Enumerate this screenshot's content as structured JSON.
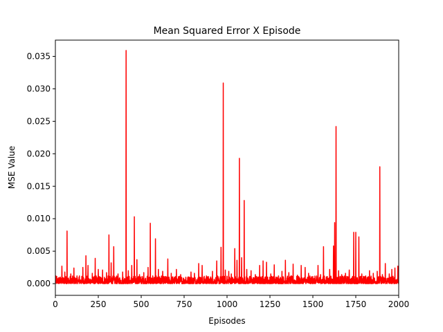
{
  "chart_data": {
    "type": "line",
    "title": "Mean Squared Error X Episode",
    "xlabel": "Episodes",
    "ylabel": "MSE Value",
    "xlim": [
      0,
      2000
    ],
    "ylim": [
      -0.0018,
      0.0375
    ],
    "xticks": [
      0,
      250,
      500,
      750,
      1000,
      1250,
      1500,
      1750,
      2000
    ],
    "xtick_labels": [
      "0",
      "250",
      "500",
      "750",
      "1000",
      "1250",
      "1500",
      "1750",
      "2000"
    ],
    "yticks": [
      0.0,
      0.005,
      0.01,
      0.015,
      0.02,
      0.025,
      0.03,
      0.035
    ],
    "ytick_labels": [
      "0.000",
      "0.005",
      "0.010",
      "0.015",
      "0.020",
      "0.025",
      "0.030",
      "0.035"
    ],
    "grid": false,
    "series": [
      {
        "color": "#ff0000",
        "baseline_max": 0.0012,
        "spikes": [
          [
            8,
            0.0011
          ],
          [
            25,
            0.0009
          ],
          [
            38,
            0.0027
          ],
          [
            55,
            0.0018
          ],
          [
            68,
            0.0081
          ],
          [
            90,
            0.0015
          ],
          [
            108,
            0.0024
          ],
          [
            140,
            0.0012
          ],
          [
            160,
            0.0025
          ],
          [
            178,
            0.0043
          ],
          [
            190,
            0.0028
          ],
          [
            215,
            0.0016
          ],
          [
            232,
            0.0039
          ],
          [
            250,
            0.0022
          ],
          [
            275,
            0.0021
          ],
          [
            298,
            0.0017
          ],
          [
            312,
            0.0075
          ],
          [
            325,
            0.0032
          ],
          [
            340,
            0.0057
          ],
          [
            365,
            0.0015
          ],
          [
            392,
            0.0018
          ],
          [
            412,
            0.0359
          ],
          [
            425,
            0.002
          ],
          [
            445,
            0.0028
          ],
          [
            460,
            0.0103
          ],
          [
            475,
            0.0037
          ],
          [
            490,
            0.0014
          ],
          [
            515,
            0.0017
          ],
          [
            540,
            0.0025
          ],
          [
            553,
            0.0093
          ],
          [
            567,
            0.0012
          ],
          [
            583,
            0.0069
          ],
          [
            600,
            0.0022
          ],
          [
            625,
            0.0019
          ],
          [
            655,
            0.0038
          ],
          [
            675,
            0.0016
          ],
          [
            705,
            0.0022
          ],
          [
            730,
            0.0014
          ],
          [
            760,
            0.001
          ],
          [
            790,
            0.0018
          ],
          [
            810,
            0.0016
          ],
          [
            835,
            0.0031
          ],
          [
            855,
            0.0028
          ],
          [
            880,
            0.0012
          ],
          [
            915,
            0.0019
          ],
          [
            940,
            0.0035
          ],
          [
            965,
            0.0056
          ],
          [
            978,
            0.0309
          ],
          [
            990,
            0.0021
          ],
          [
            1010,
            0.0019
          ],
          [
            1025,
            0.0015
          ],
          [
            1045,
            0.0054
          ],
          [
            1058,
            0.0036
          ],
          [
            1072,
            0.0193
          ],
          [
            1085,
            0.004
          ],
          [
            1100,
            0.0128
          ],
          [
            1115,
            0.0022
          ],
          [
            1140,
            0.002
          ],
          [
            1165,
            0.0014
          ],
          [
            1190,
            0.0028
          ],
          [
            1210,
            0.0035
          ],
          [
            1230,
            0.0033
          ],
          [
            1255,
            0.0015
          ],
          [
            1275,
            0.0029
          ],
          [
            1300,
            0.0012
          ],
          [
            1320,
            0.0019
          ],
          [
            1340,
            0.0036
          ],
          [
            1360,
            0.0017
          ],
          [
            1385,
            0.003
          ],
          [
            1410,
            0.0013
          ],
          [
            1432,
            0.0028
          ],
          [
            1455,
            0.0025
          ],
          [
            1475,
            0.0016
          ],
          [
            1500,
            0.0011
          ],
          [
            1530,
            0.0028
          ],
          [
            1545,
            0.0014
          ],
          [
            1562,
            0.0057
          ],
          [
            1578,
            0.001
          ],
          [
            1598,
            0.0022
          ],
          [
            1620,
            0.0058
          ],
          [
            1627,
            0.0094
          ],
          [
            1635,
            0.0242
          ],
          [
            1650,
            0.002
          ],
          [
            1668,
            0.0014
          ],
          [
            1690,
            0.0016
          ],
          [
            1712,
            0.0021
          ],
          [
            1738,
            0.0079
          ],
          [
            1750,
            0.0079
          ],
          [
            1768,
            0.0072
          ],
          [
            1785,
            0.0015
          ],
          [
            1808,
            0.0012
          ],
          [
            1830,
            0.002
          ],
          [
            1852,
            0.0016
          ],
          [
            1875,
            0.0019
          ],
          [
            1890,
            0.018
          ],
          [
            1905,
            0.0014
          ],
          [
            1922,
            0.0031
          ],
          [
            1945,
            0.0015
          ],
          [
            1960,
            0.0022
          ],
          [
            1978,
            0.0024
          ],
          [
            1995,
            0.0027
          ]
        ]
      }
    ]
  }
}
